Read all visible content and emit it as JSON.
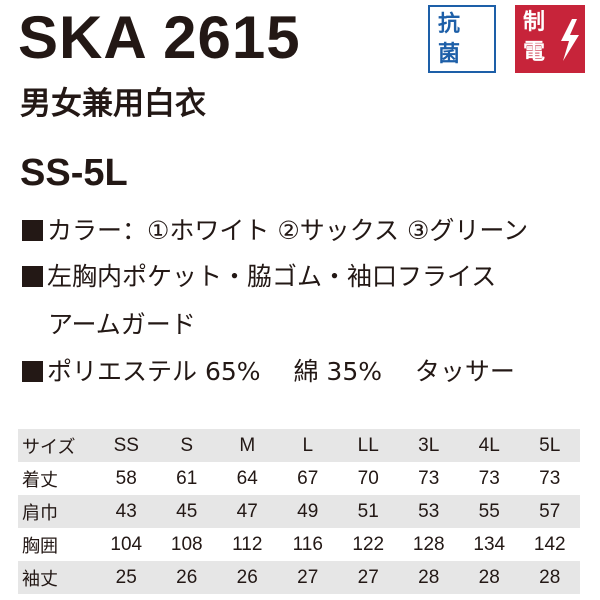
{
  "product": {
    "code": "SKA 2615",
    "name": "男女兼用白衣",
    "size_range": "SS-5L"
  },
  "badges": {
    "antibacterial": [
      "抗",
      "菌"
    ],
    "antistatic": [
      "制",
      "電"
    ],
    "antibacterial_color": "#1d5fa8",
    "antistatic_color": "#c7243a"
  },
  "specs": {
    "colors": "カラー：①ホワイト  ②サックス ③グリーン",
    "features_line1": "左胸内ポケット・脇ゴム・袖口フライス",
    "features_line2": "アームガード",
    "material": "ポリエステル 65%　 綿 35%　 タッサー"
  },
  "size_table": {
    "header_label": "サイズ",
    "sizes": [
      "SS",
      "S",
      "M",
      "L",
      "LL",
      "3L",
      "4L",
      "5L"
    ],
    "rows": [
      {
        "label": "着丈",
        "values": [
          "58",
          "61",
          "64",
          "67",
          "70",
          "73",
          "73",
          "73"
        ]
      },
      {
        "label": "肩巾",
        "values": [
          "43",
          "45",
          "47",
          "49",
          "51",
          "53",
          "55",
          "57"
        ]
      },
      {
        "label": "胸囲",
        "values": [
          "104",
          "108",
          "112",
          "116",
          "122",
          "128",
          "134",
          "142"
        ]
      },
      {
        "label": "袖丈",
        "values": [
          "25",
          "26",
          "26",
          "27",
          "27",
          "28",
          "28",
          "28"
        ]
      }
    ],
    "row_shade_color": "#e6e6e6"
  }
}
